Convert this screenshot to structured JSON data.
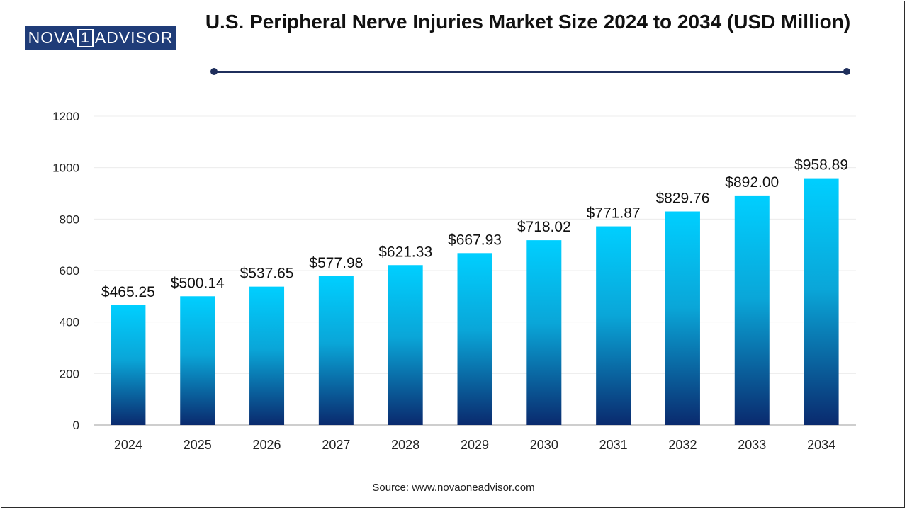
{
  "brand": {
    "logo_prefix": "NOVA",
    "logo_digit": "1",
    "logo_suffix": "ADVISOR",
    "logo_bg": "#1f3c78"
  },
  "header": {
    "title": "U.S. Peripheral Nerve Injuries Market Size 2024 to 2034 (USD Million)"
  },
  "footer": {
    "source": "Source: www.novaoneadvisor.com"
  },
  "chart_data": {
    "type": "bar",
    "title": "U.S. Peripheral Nerve Injuries Market Size 2024 to 2034 (USD Million)",
    "xlabel": "",
    "ylabel": "",
    "categories": [
      "2024",
      "2025",
      "2026",
      "2027",
      "2028",
      "2029",
      "2030",
      "2031",
      "2032",
      "2033",
      "2034"
    ],
    "values": [
      465.25,
      500.14,
      537.65,
      577.98,
      621.33,
      667.93,
      718.02,
      771.87,
      829.76,
      892.0,
      958.89
    ],
    "data_labels": [
      "$465.25",
      "$500.14",
      "$537.65",
      "$577.98",
      "$621.33",
      "$667.93",
      "$718.02",
      "$771.87",
      "$829.76",
      "$892.00",
      "$958.89"
    ],
    "ylim": [
      0,
      1200
    ],
    "yticks": [
      "0",
      "200",
      "400",
      "600",
      "800",
      "1000",
      "1200"
    ],
    "grid": true,
    "legend": "none",
    "colors": {
      "bar_top": "#00cfff",
      "bar_bottom": "#0a2a6e"
    }
  }
}
